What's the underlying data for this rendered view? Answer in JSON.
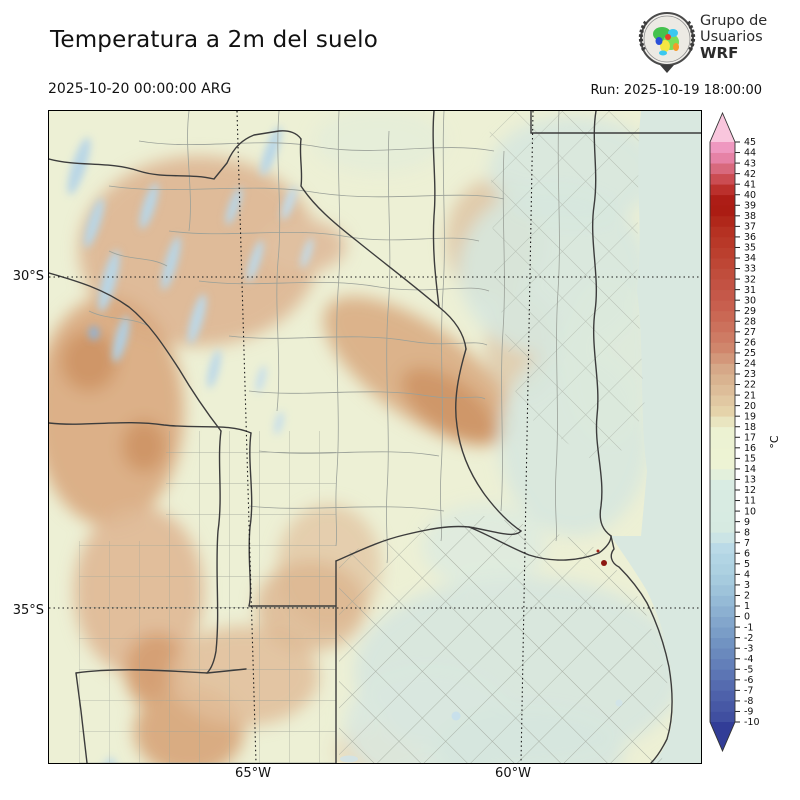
{
  "header": {
    "title": "Temperatura a 2m del suelo",
    "valid_time": "2025-10-20 00:00:00 ARG",
    "run_label": "Run: 2025-10-19 18:00:00",
    "logo": {
      "line1": "Grupo de",
      "line2": "Usuarios",
      "line3": "WRF"
    }
  },
  "map": {
    "lat_labels": [
      {
        "text": "30°S"
      },
      {
        "text": "35°S"
      }
    ],
    "lon_labels": [
      {
        "text": "65°W"
      },
      {
        "text": "60°W"
      }
    ],
    "base_color": "#edf0d5",
    "cool_color": "#d8e8df",
    "warm_color": "#dcae8a",
    "border_color": "#3c3c3c",
    "city_hotspot_color": "#8c1710"
  },
  "colorbar": {
    "unit": "°C",
    "vmax": 45,
    "vmin": -10,
    "tick_values": [
      45,
      44,
      43,
      42,
      41,
      40,
      39,
      38,
      37,
      36,
      35,
      34,
      33,
      32,
      31,
      30,
      29,
      28,
      27,
      26,
      25,
      24,
      23,
      22,
      21,
      20,
      19,
      18,
      17,
      16,
      15,
      14,
      13,
      12,
      11,
      10,
      9,
      8,
      7,
      6,
      5,
      4,
      3,
      2,
      1,
      0,
      -1,
      -2,
      -3,
      -4,
      -5,
      -6,
      -7,
      -8,
      -9,
      -10
    ],
    "stops": [
      {
        "v": 46,
        "c": "#f9c6dd"
      },
      {
        "v": 45,
        "c": "#f2a2c8"
      },
      {
        "v": 44,
        "c": "#ec8eb8"
      },
      {
        "v": 43,
        "c": "#df7694"
      },
      {
        "v": 42,
        "c": "#d15b66"
      },
      {
        "v": 41,
        "c": "#c43d3d"
      },
      {
        "v": 40,
        "c": "#b2231b"
      },
      {
        "v": 39,
        "c": "#a81710"
      },
      {
        "v": 38,
        "c": "#ad2115"
      },
      {
        "v": 37,
        "c": "#b32d1f"
      },
      {
        "v": 35,
        "c": "#b93b2b"
      },
      {
        "v": 33,
        "c": "#bf4a38"
      },
      {
        "v": 31,
        "c": "#c45446"
      },
      {
        "v": 29,
        "c": "#c96350"
      },
      {
        "v": 27,
        "c": "#cd7660"
      },
      {
        "v": 25,
        "c": "#d18b70"
      },
      {
        "v": 24,
        "c": "#d4a284"
      },
      {
        "v": 22,
        "c": "#dab894"
      },
      {
        "v": 21,
        "c": "#dfc29e"
      },
      {
        "v": 20,
        "c": "#e3cda6"
      },
      {
        "v": 19,
        "c": "#e6d8ae"
      },
      {
        "v": 18,
        "c": "#ecf2d2"
      },
      {
        "v": 14,
        "c": "#edf3d4"
      },
      {
        "v": 13,
        "c": "#d9ece3"
      },
      {
        "v": 8,
        "c": "#d6eae1"
      },
      {
        "v": 7,
        "c": "#c0dde9"
      },
      {
        "v": 6,
        "c": "#b4d7e5"
      },
      {
        "v": 4,
        "c": "#aacfe0"
      },
      {
        "v": 2,
        "c": "#9abfd8"
      },
      {
        "v": 0,
        "c": "#87abce"
      },
      {
        "v": -2,
        "c": "#7598c4"
      },
      {
        "v": -4,
        "c": "#6684bb"
      },
      {
        "v": -6,
        "c": "#5870b1"
      },
      {
        "v": -8,
        "c": "#4a5ca7"
      },
      {
        "v": -10,
        "c": "#3c4a9e"
      },
      {
        "v": -11,
        "c": "#323d97"
      }
    ]
  }
}
